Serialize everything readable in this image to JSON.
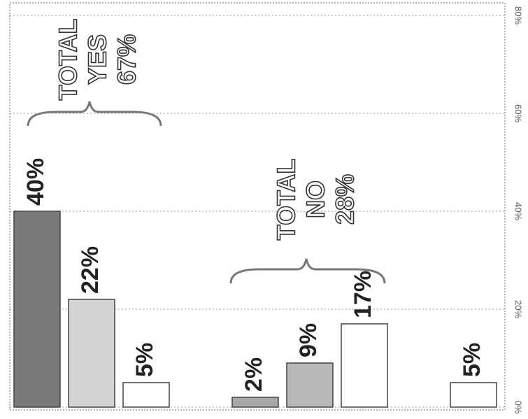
{
  "chart_data": {
    "type": "bar",
    "categories": [
      null,
      null,
      null,
      null,
      null,
      null,
      null,
      null,
      null
    ],
    "values": [
      40,
      22,
      5,
      null,
      2,
      9,
      17,
      null,
      5
    ],
    "value_labels": [
      "40%",
      "22%",
      "5%",
      null,
      "2%",
      "9%",
      "17%",
      null,
      "5%"
    ],
    "colors": [
      "#7a7a7a",
      "#d4d4d4",
      "#ffffff",
      null,
      "#a8a8a8",
      "#b8b8b8",
      "#ffffff",
      null,
      "#ffffff"
    ],
    "ylim": [
      0,
      80
    ],
    "yticks": [
      {
        "value": 0,
        "label": "0%"
      },
      {
        "value": 20,
        "label": "20%"
      },
      {
        "value": 40,
        "label": "40%"
      },
      {
        "value": 60,
        "label": "60%"
      },
      {
        "value": 80,
        "label": "80%"
      }
    ],
    "grid": true,
    "annotations": [
      {
        "lines": [
          "TOTAL",
          "YES",
          "67%"
        ]
      },
      {
        "lines": [
          "TOTAL",
          "NO",
          "28%"
        ]
      }
    ]
  }
}
